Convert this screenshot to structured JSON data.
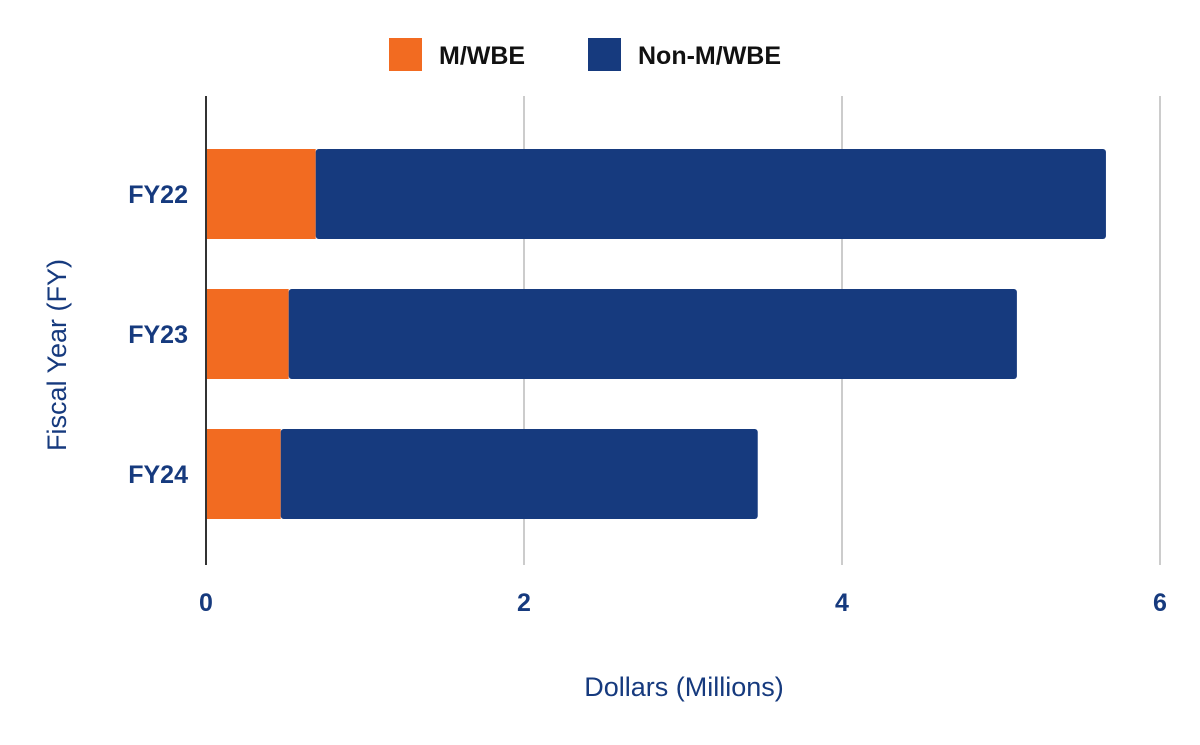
{
  "chart_data": {
    "type": "bar",
    "orientation": "horizontal",
    "stacked": true,
    "categories": [
      "FY22",
      "FY23",
      "FY24"
    ],
    "series": [
      {
        "name": "M/WBE",
        "values": [
          0.69,
          0.52,
          0.47
        ],
        "color": "#f26b21"
      },
      {
        "name": "Non-M/WBE",
        "values": [
          4.97,
          4.58,
          3.0
        ],
        "color": "#163a7e"
      }
    ],
    "xlabel": "Dollars (Millions)",
    "ylabel": "Fiscal Year (FY)",
    "xlim": [
      0,
      6
    ],
    "xticks": [
      "0",
      "2",
      "4",
      "6"
    ],
    "grid": "vertical",
    "legend_position": "top"
  },
  "colors": {
    "text": "#163a7e",
    "grid": "#cccccc",
    "axis": "#333333"
  }
}
